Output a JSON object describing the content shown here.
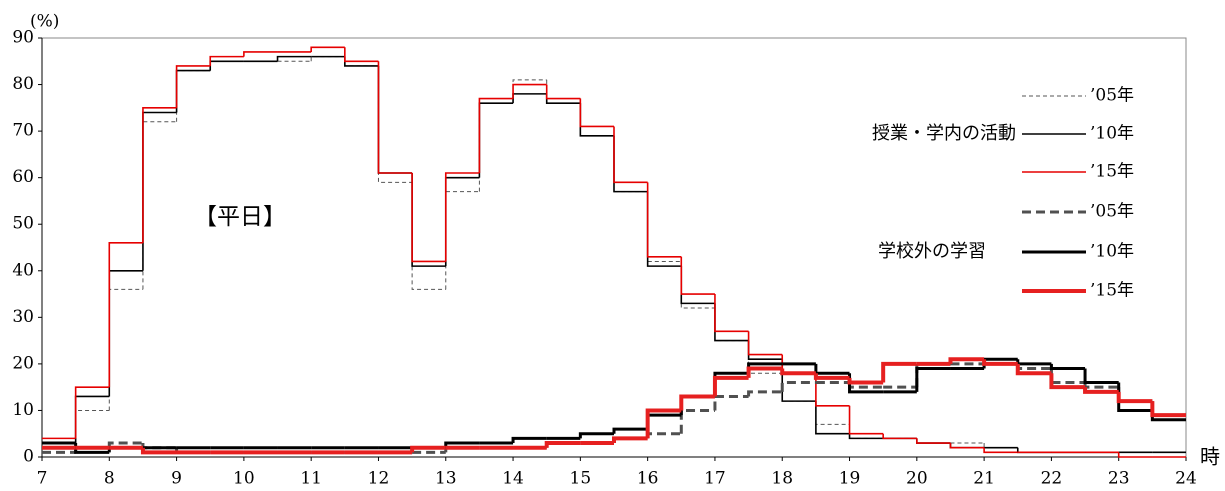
{
  "chart_data": {
    "type": "step",
    "y_label": "(%)",
    "x_unit": "時",
    "annotations": [
      "【平日】",
      "授業・学内の活動",
      "学校外の学習"
    ],
    "x": [
      7,
      7.5,
      8,
      8.5,
      9,
      9.5,
      10,
      10.5,
      11,
      11.5,
      12,
      12.5,
      13,
      13.5,
      14,
      14.5,
      15,
      15.5,
      16,
      16.5,
      17,
      17.5,
      18,
      18.5,
      19,
      19.5,
      20,
      20.5,
      21,
      21.5,
      22,
      22.5,
      23,
      23.5
    ],
    "xlim": [
      7,
      24
    ],
    "xticks": [
      7,
      8,
      9,
      10,
      11,
      12,
      13,
      14,
      15,
      16,
      17,
      18,
      19,
      20,
      21,
      22,
      23,
      24
    ],
    "ylim": [
      0,
      90
    ],
    "yticks": [
      0,
      10,
      20,
      30,
      40,
      50,
      60,
      70,
      80,
      90
    ],
    "series": [
      {
        "name": "’05年",
        "color": "#555555",
        "width": 1,
        "dash": "4,3",
        "values": [
          3,
          10,
          36,
          72,
          83,
          85,
          85,
          85,
          86,
          84,
          59,
          36,
          57,
          76,
          81,
          77,
          69,
          57,
          42,
          32,
          25,
          18,
          12,
          7,
          4,
          4,
          3,
          3,
          2,
          1,
          1,
          1,
          0,
          0
        ]
      },
      {
        "name": "’10年",
        "color": "#000000",
        "width": 1.6,
        "dash": null,
        "values": [
          3,
          13,
          40,
          74,
          83,
          85,
          85,
          86,
          86,
          84,
          61,
          41,
          60,
          76,
          78,
          76,
          69,
          57,
          41,
          33,
          25,
          21,
          12,
          5,
          4,
          4,
          3,
          2,
          2,
          1,
          1,
          1,
          1,
          1
        ]
      },
      {
        "name": "’15年",
        "color": "#e60000",
        "width": 1.6,
        "dash": null,
        "values": [
          4,
          15,
          46,
          75,
          84,
          86,
          87,
          87,
          88,
          85,
          61,
          42,
          61,
          77,
          80,
          77,
          71,
          59,
          43,
          35,
          27,
          22,
          18,
          11,
          5,
          4,
          3,
          2,
          1,
          1,
          1,
          1,
          0,
          0
        ]
      },
      {
        "name": "’05年",
        "color": "#505050",
        "width": 3,
        "dash": "9,5",
        "values": [
          1,
          2,
          3,
          2,
          1,
          1,
          1,
          1,
          1,
          1,
          1,
          1,
          2,
          2,
          2,
          3,
          3,
          4,
          5,
          10,
          13,
          14,
          16,
          16,
          15,
          15,
          20,
          20,
          20,
          19,
          16,
          15,
          12,
          9
        ]
      },
      {
        "name": "’10年",
        "color": "#000000",
        "width": 3,
        "dash": null,
        "values": [
          3,
          1,
          2,
          2,
          2,
          2,
          2,
          2,
          2,
          2,
          2,
          2,
          3,
          3,
          4,
          4,
          5,
          6,
          9,
          13,
          18,
          20,
          20,
          18,
          14,
          14,
          19,
          19,
          21,
          20,
          19,
          16,
          10,
          8
        ]
      },
      {
        "name": "’15年",
        "color": "#e62020",
        "width": 4,
        "dash": null,
        "values": [
          2,
          2,
          2,
          1,
          1,
          1,
          1,
          1,
          1,
          1,
          1,
          2,
          2,
          2,
          2,
          3,
          3,
          4,
          10,
          13,
          17,
          19,
          18,
          17,
          16,
          20,
          20,
          21,
          20,
          18,
          15,
          14,
          12,
          9
        ]
      }
    ]
  }
}
